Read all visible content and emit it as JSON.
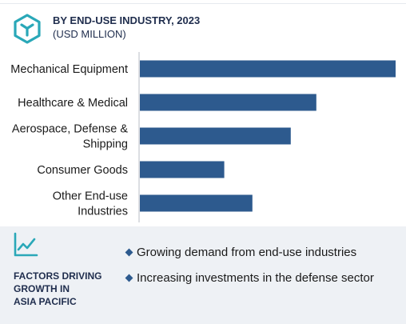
{
  "header": {
    "title": "BY END-USE INDUSTRY, 2023",
    "subtitle": "(USD MILLION)",
    "icon": "cube-hexagon-icon"
  },
  "chart_data": {
    "type": "bar",
    "orientation": "horizontal",
    "categories": [
      [
        "Mechanical Equipment"
      ],
      [
        "Healthcare & Medical"
      ],
      [
        "Aerospace, Defense &",
        "Shipping"
      ],
      [
        "Consumer Goods"
      ],
      [
        "Other End-use",
        "Industries"
      ]
    ],
    "values": [
      100,
      69,
      59,
      33,
      44
    ],
    "xlim": [
      0,
      100
    ],
    "grid": false,
    "bar_color": "#2d5a8e"
  },
  "footer": {
    "title_lines": [
      "FACTORS DRIVING",
      "GROWTH IN",
      "ASIA PACIFIC"
    ],
    "icon": "trend-chart-icon",
    "factors": [
      "Growing demand from end-use industries",
      "Increasing investments in the defense sector"
    ]
  },
  "colors": {
    "accent": "#2aa8b8",
    "bar": "#2d5a8e",
    "heading": "#1f2d4d",
    "panel": "#eef1f5"
  }
}
